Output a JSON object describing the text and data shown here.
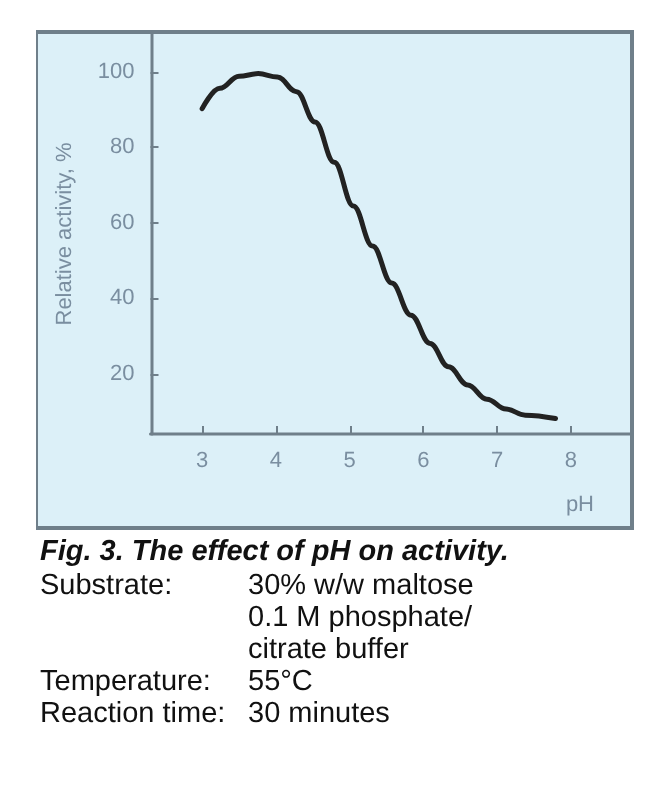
{
  "chart_data": {
    "type": "line",
    "title": "Fig. 3. The effect of pH on activity.",
    "xlabel": "pH",
    "ylabel": "Relative activity, %",
    "annotations": [
      "Substrate:",
      "30% w/w maltose\n0.1 M phosphate/\ncitrate buffer",
      "Temperature:",
      "55°C",
      "Reaction time:",
      "30 minutes"
    ],
    "x": [
      3,
      3.24,
      3.5,
      3.76,
      4.02,
      4.28,
      4.53,
      4.79,
      5.05,
      5.31,
      5.57,
      5.83,
      6.09,
      6.34,
      6.6,
      6.86,
      7.12,
      7.38,
      7.79
    ],
    "series": [
      {
        "color": "#222222",
        "values": [
          90.2,
          95.6,
          98.8,
          99.5,
          98.6,
          94.7,
          86.7,
          76,
          64.4,
          53.8,
          44,
          35.5,
          28,
          21.8,
          17,
          13.2,
          10.6,
          9,
          8.1
        ]
      }
    ],
    "xlim": [
      2.3,
      8.8
    ],
    "xticks": [
      3,
      4,
      5,
      6,
      7,
      8
    ],
    "ylim": [
      4,
      110
    ],
    "yticks": [
      20,
      40,
      60,
      80,
      100
    ],
    "grid": false,
    "marker": "none",
    "line_style": "solid"
  }
}
